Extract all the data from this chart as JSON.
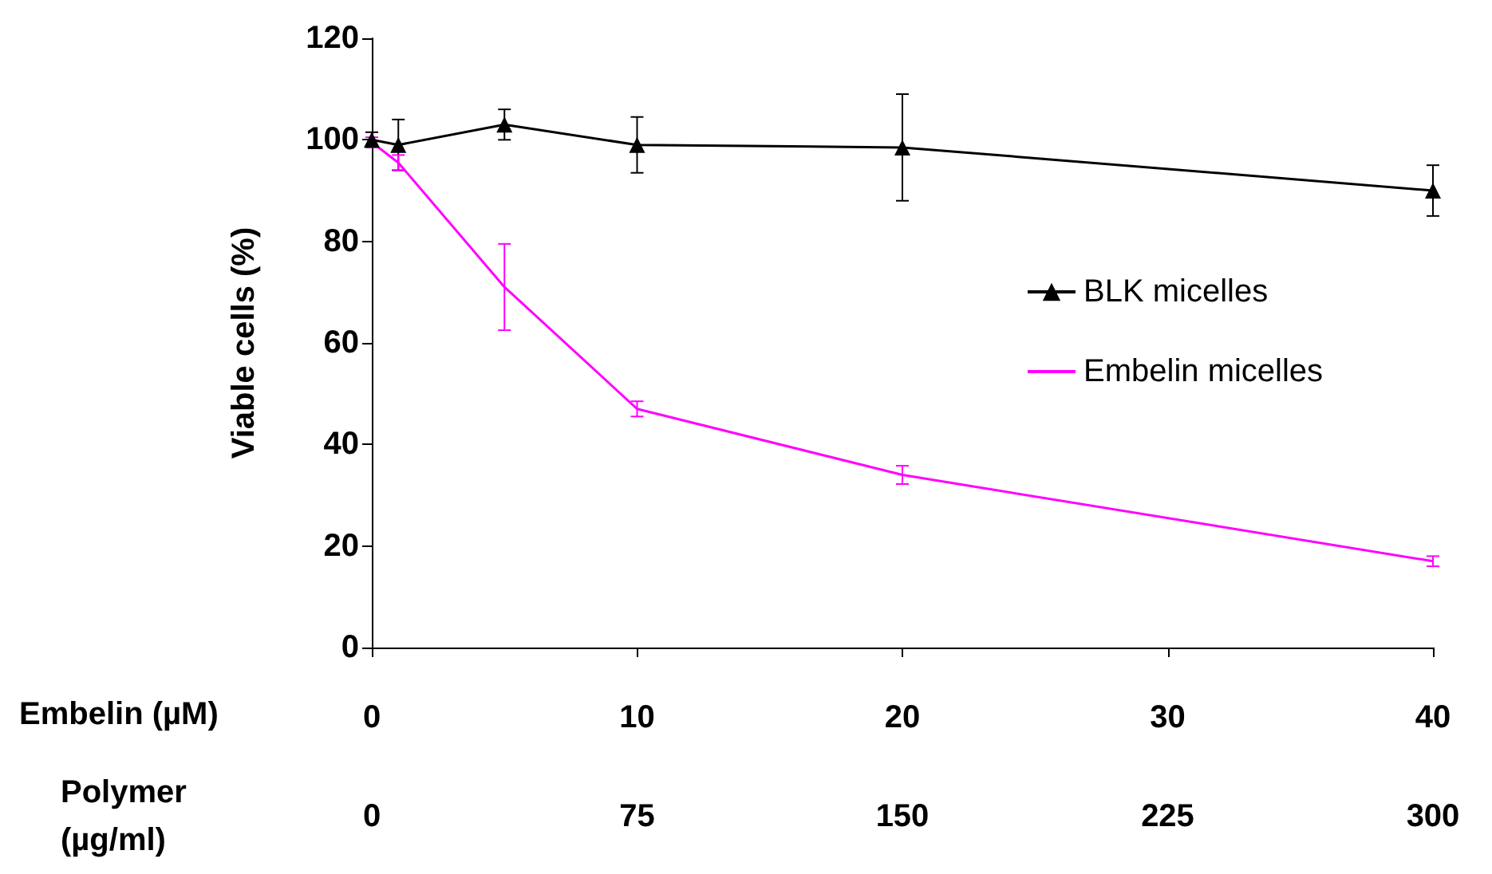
{
  "chart_data": {
    "type": "line",
    "ylabel": "Viable cells (%)",
    "xlabel": "Embelin (µM)",
    "x2label": "Polymer\n(µg/ml)",
    "x": [
      0,
      1,
      5,
      10,
      20,
      40
    ],
    "series": [
      {
        "name": "BLK micelles",
        "color": "#000000",
        "marker": "triangle",
        "values": [
          100,
          99,
          103,
          99,
          98.5,
          90
        ],
        "errors": [
          1.5,
          5,
          3,
          5.5,
          10.5,
          5
        ]
      },
      {
        "name": "Embelin micelles",
        "color": "#ff00ff",
        "marker": "none",
        "values": [
          99.5,
          95.5,
          71,
          47,
          34,
          17
        ],
        "errors": [
          1,
          1.5,
          8.5,
          1.5,
          1.8,
          1
        ]
      }
    ],
    "xlim": [
      0,
      40
    ],
    "xticks": [
      0,
      10,
      20,
      30,
      40
    ],
    "x2lim": [
      0,
      300
    ],
    "x2ticks": [
      0,
      75,
      150,
      225,
      300
    ],
    "ylim": [
      0,
      120
    ],
    "yticks": [
      0,
      20,
      40,
      60,
      80,
      100,
      120
    ],
    "grid": false,
    "legend": "right",
    "line_style": "solid"
  }
}
